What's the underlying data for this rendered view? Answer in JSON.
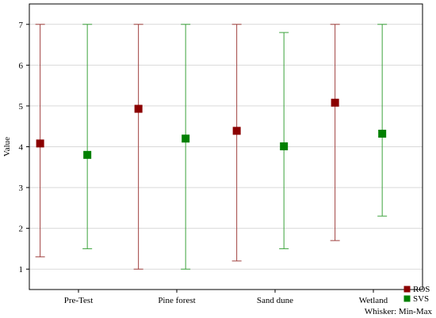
{
  "chart_data": {
    "type": "error-bar",
    "categories": [
      "Pre-Test",
      "Pine forest",
      "Sand dune",
      "Wetland"
    ],
    "ylabel": "Value",
    "xlabel": "",
    "ylim": [
      0.5,
      7.5
    ],
    "yticks": [
      1,
      2,
      3,
      4,
      5,
      6,
      7
    ],
    "grid": true,
    "legend_position": "bottom-right",
    "whisker_note": "Whisker: Min-Max",
    "series": [
      {
        "name": "ROS",
        "color": "#8b0000",
        "whisker_color": "#a0413f",
        "values": [
          4.08,
          4.93,
          4.39,
          5.08
        ],
        "min": [
          1.3,
          1.0,
          1.2,
          1.7
        ],
        "max": [
          7.0,
          7.0,
          7.0,
          7.0
        ]
      },
      {
        "name": "SVS",
        "color": "#008000",
        "whisker_color": "#3da33d",
        "values": [
          3.8,
          4.2,
          4.01,
          4.32
        ],
        "min": [
          1.5,
          1.0,
          1.5,
          2.3
        ],
        "max": [
          7.0,
          7.0,
          6.8,
          7.0
        ]
      }
    ]
  }
}
